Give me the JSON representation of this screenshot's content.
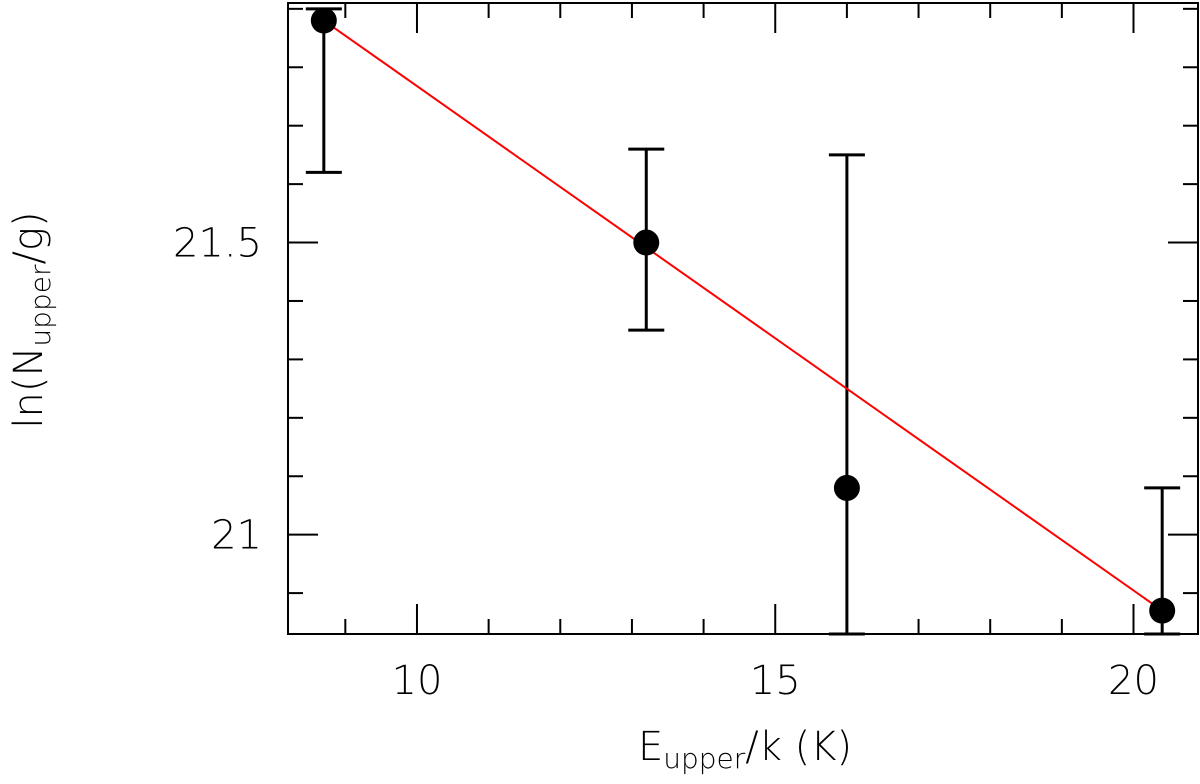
{
  "chart_data": {
    "type": "scatter",
    "title": "",
    "xlabel": {
      "main": "E",
      "sub": "upper",
      "rest": "/k (K)"
    },
    "ylabel": {
      "pre": "ln(N",
      "sub": "upper",
      "post": "/g)"
    },
    "xlim": [
      8.2,
      20.9
    ],
    "ylim": [
      20.83,
      21.91
    ],
    "x_major_ticks": [
      10,
      15,
      20
    ],
    "x_minor_ticks": [
      9,
      11,
      12,
      13,
      14,
      16,
      17,
      18,
      19,
      20
    ],
    "y_major_ticks": [
      21,
      21.5
    ],
    "y_minor_ticks": [
      20.9,
      21.1,
      21.2,
      21.3,
      21.4,
      21.6,
      21.7,
      21.8,
      21.9
    ],
    "x_tick_labels": [
      "10",
      "15",
      "20"
    ],
    "y_tick_labels": [
      "21",
      "21.5"
    ],
    "grid": false,
    "series": [
      {
        "points": [
          {
            "x": 8.7,
            "y": 21.88,
            "err_low": 21.62,
            "err_high": 21.9
          },
          {
            "x": 13.2,
            "y": 21.5,
            "err_low": 21.35,
            "err_high": 21.66
          },
          {
            "x": 16.0,
            "y": 21.08,
            "err_low": 20.83,
            "err_high": 21.65
          },
          {
            "x": 20.4,
            "y": 20.87,
            "err_low": 20.83,
            "err_high": 21.08
          }
        ],
        "color": "#000000"
      }
    ],
    "fit_line": {
      "x": [
        8.7,
        20.4
      ],
      "y": [
        21.88,
        20.87
      ],
      "color": "#ff0000"
    }
  }
}
